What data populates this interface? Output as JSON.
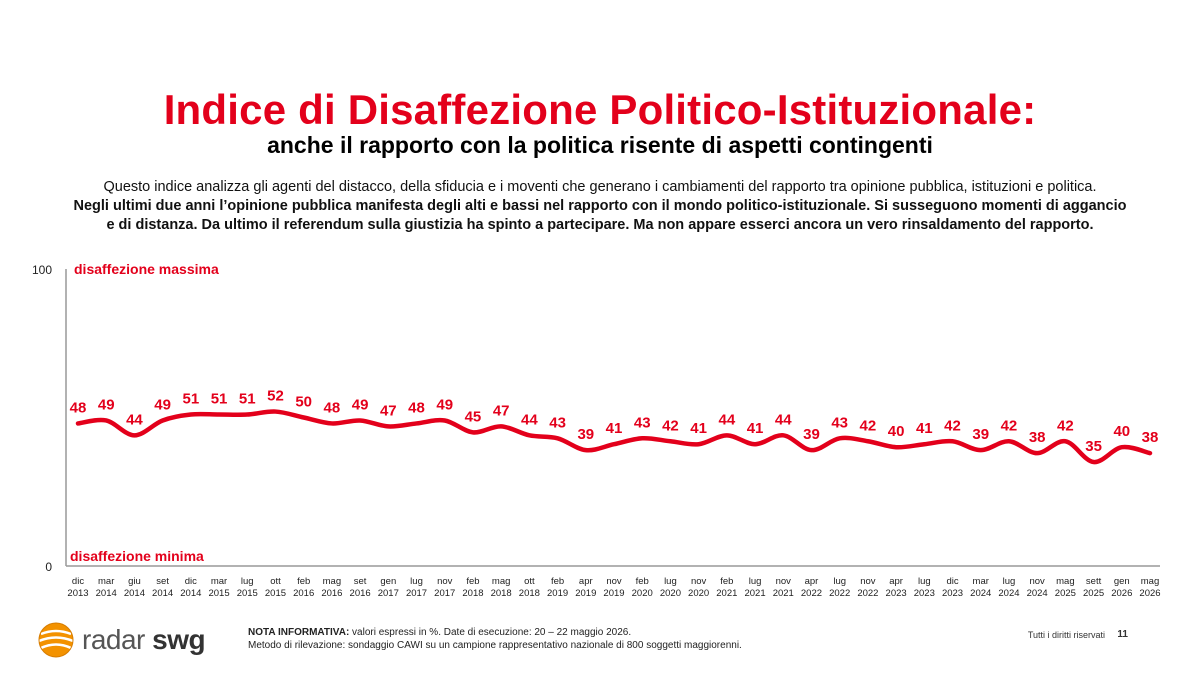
{
  "header": {
    "title": "Indice di Disaffezione Politico-Istituzionale:",
    "subtitle": "anche il rapporto con la politica risente di aspetti contingenti",
    "intro_line1": "Questo indice analizza gli agenti del distacco, della sfiducia e i moventi che generano i cambiamenti del rapporto tra opinione pubblica, istituzioni e politica.",
    "intro_line2": "Negli ultimi due anni l’opinione pubblica manifesta degli alti e bassi nel rapporto con il mondo politico-istituzionale. Si susseguono momenti di aggancio",
    "intro_line3": "e di distanza. Da ultimo il referendum sulla giustizia ha spinto a partecipare. Ma non appare esserci ancora un vero rinsaldamento del rapporto."
  },
  "colors": {
    "accent": "#e3001b",
    "axis": "#999999",
    "logo_orange": "#f39200"
  },
  "chart_data": {
    "type": "line",
    "ylim": [
      0,
      100
    ],
    "yticks": [
      "100",
      "0"
    ],
    "top_label": "disaffezione massima",
    "bottom_label": "disaffezione minima",
    "categories": [
      [
        "dic",
        "2013"
      ],
      [
        "mar",
        "2014"
      ],
      [
        "giu",
        "2014"
      ],
      [
        "set",
        "2014"
      ],
      [
        "dic",
        "2014"
      ],
      [
        "mar",
        "2015"
      ],
      [
        "lug",
        "2015"
      ],
      [
        "ott",
        "2015"
      ],
      [
        "feb",
        "2016"
      ],
      [
        "mag",
        "2016"
      ],
      [
        "set",
        "2016"
      ],
      [
        "gen",
        "2017"
      ],
      [
        "lug",
        "2017"
      ],
      [
        "nov",
        "2017"
      ],
      [
        "feb",
        "2018"
      ],
      [
        "mag",
        "2018"
      ],
      [
        "ott",
        "2018"
      ],
      [
        "feb",
        "2019"
      ],
      [
        "apr",
        "2019"
      ],
      [
        "nov",
        "2019"
      ],
      [
        "feb",
        "2020"
      ],
      [
        "lug",
        "2020"
      ],
      [
        "nov",
        "2020"
      ],
      [
        "feb",
        "2021"
      ],
      [
        "lug",
        "2021"
      ],
      [
        "nov",
        "2021"
      ],
      [
        "apr",
        "2022"
      ],
      [
        "lug",
        "2022"
      ],
      [
        "nov",
        "2022"
      ],
      [
        "apr",
        "2023"
      ],
      [
        "lug",
        "2023"
      ],
      [
        "dic",
        "2023"
      ],
      [
        "mar",
        "2024"
      ],
      [
        "lug",
        "2024"
      ],
      [
        "nov",
        "2024"
      ],
      [
        "mag",
        "2025"
      ],
      [
        "sett",
        "2025"
      ],
      [
        "gen",
        "2026"
      ],
      [
        "mag",
        "2026"
      ]
    ],
    "values": [
      48,
      49,
      44,
      49,
      51,
      51,
      51,
      52,
      50,
      48,
      49,
      47,
      48,
      49,
      45,
      47,
      44,
      43,
      39,
      41,
      43,
      42,
      41,
      44,
      41,
      44,
      39,
      43,
      42,
      40,
      41,
      42,
      39,
      42,
      38,
      42,
      35,
      40,
      38
    ]
  },
  "footer": {
    "logo_radar": "radar",
    "logo_swg": "swg",
    "note_label": "NOTA INFORMATIVA:",
    "note_text": " valori espressi in %. Date di esecuzione: 20 – 22 maggio 2026.",
    "method_text": "Metodo di rilevazione: sondaggio CAWI su un campione rappresentativo nazionale di 800 soggetti maggiorenni.",
    "rights": "Tutti i diritti riservati",
    "page_number": "11"
  }
}
